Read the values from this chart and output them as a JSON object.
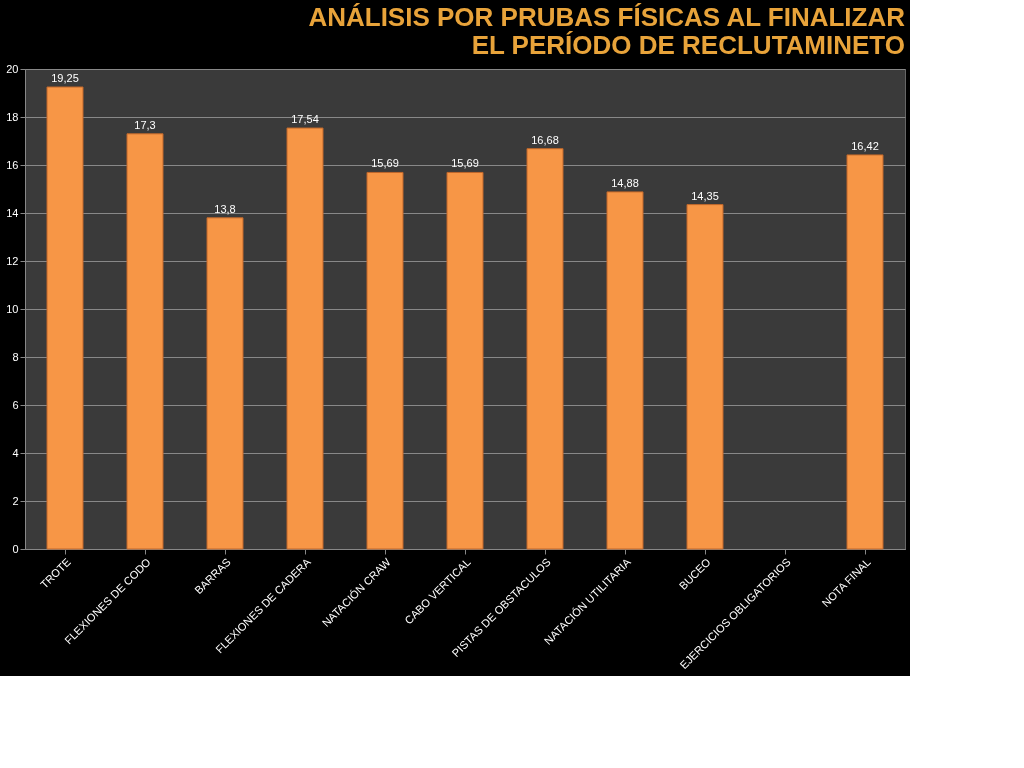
{
  "chart_data": {
    "type": "bar",
    "title": "ANÁLISIS POR PRUBAS FÍSICAS AL FINALIZAR EL PERÍODO DE RECLUTAMINETO",
    "categories": [
      "TROTE",
      "FLEXIONES DE CODO",
      "BARRAS",
      "FLEXIONES DE CADERA",
      "NATACIÓN CRAW",
      "CABO VERTICAL",
      "PISTAS DE OBSTACULOS",
      "NATACIÓN UTILITARIA",
      "BUCEO",
      "EJERCICIOS OBLIGATORIOS",
      "NOTA FINAL"
    ],
    "values": [
      19.25,
      17.3,
      13.8,
      17.54,
      15.69,
      15.69,
      16.68,
      14.88,
      14.35,
      null,
      16.42
    ],
    "value_labels": [
      "19,25",
      "17,3",
      "13,8",
      "17,54",
      "15,69",
      "15,69",
      "16,68",
      "14,88",
      "14,35",
      null,
      "16,42"
    ],
    "color": "#f79646",
    "ylim": [
      0,
      20
    ],
    "yticks": [
      0,
      2,
      4,
      6,
      8,
      10,
      12,
      14,
      16,
      18,
      20
    ],
    "grid": "y"
  }
}
